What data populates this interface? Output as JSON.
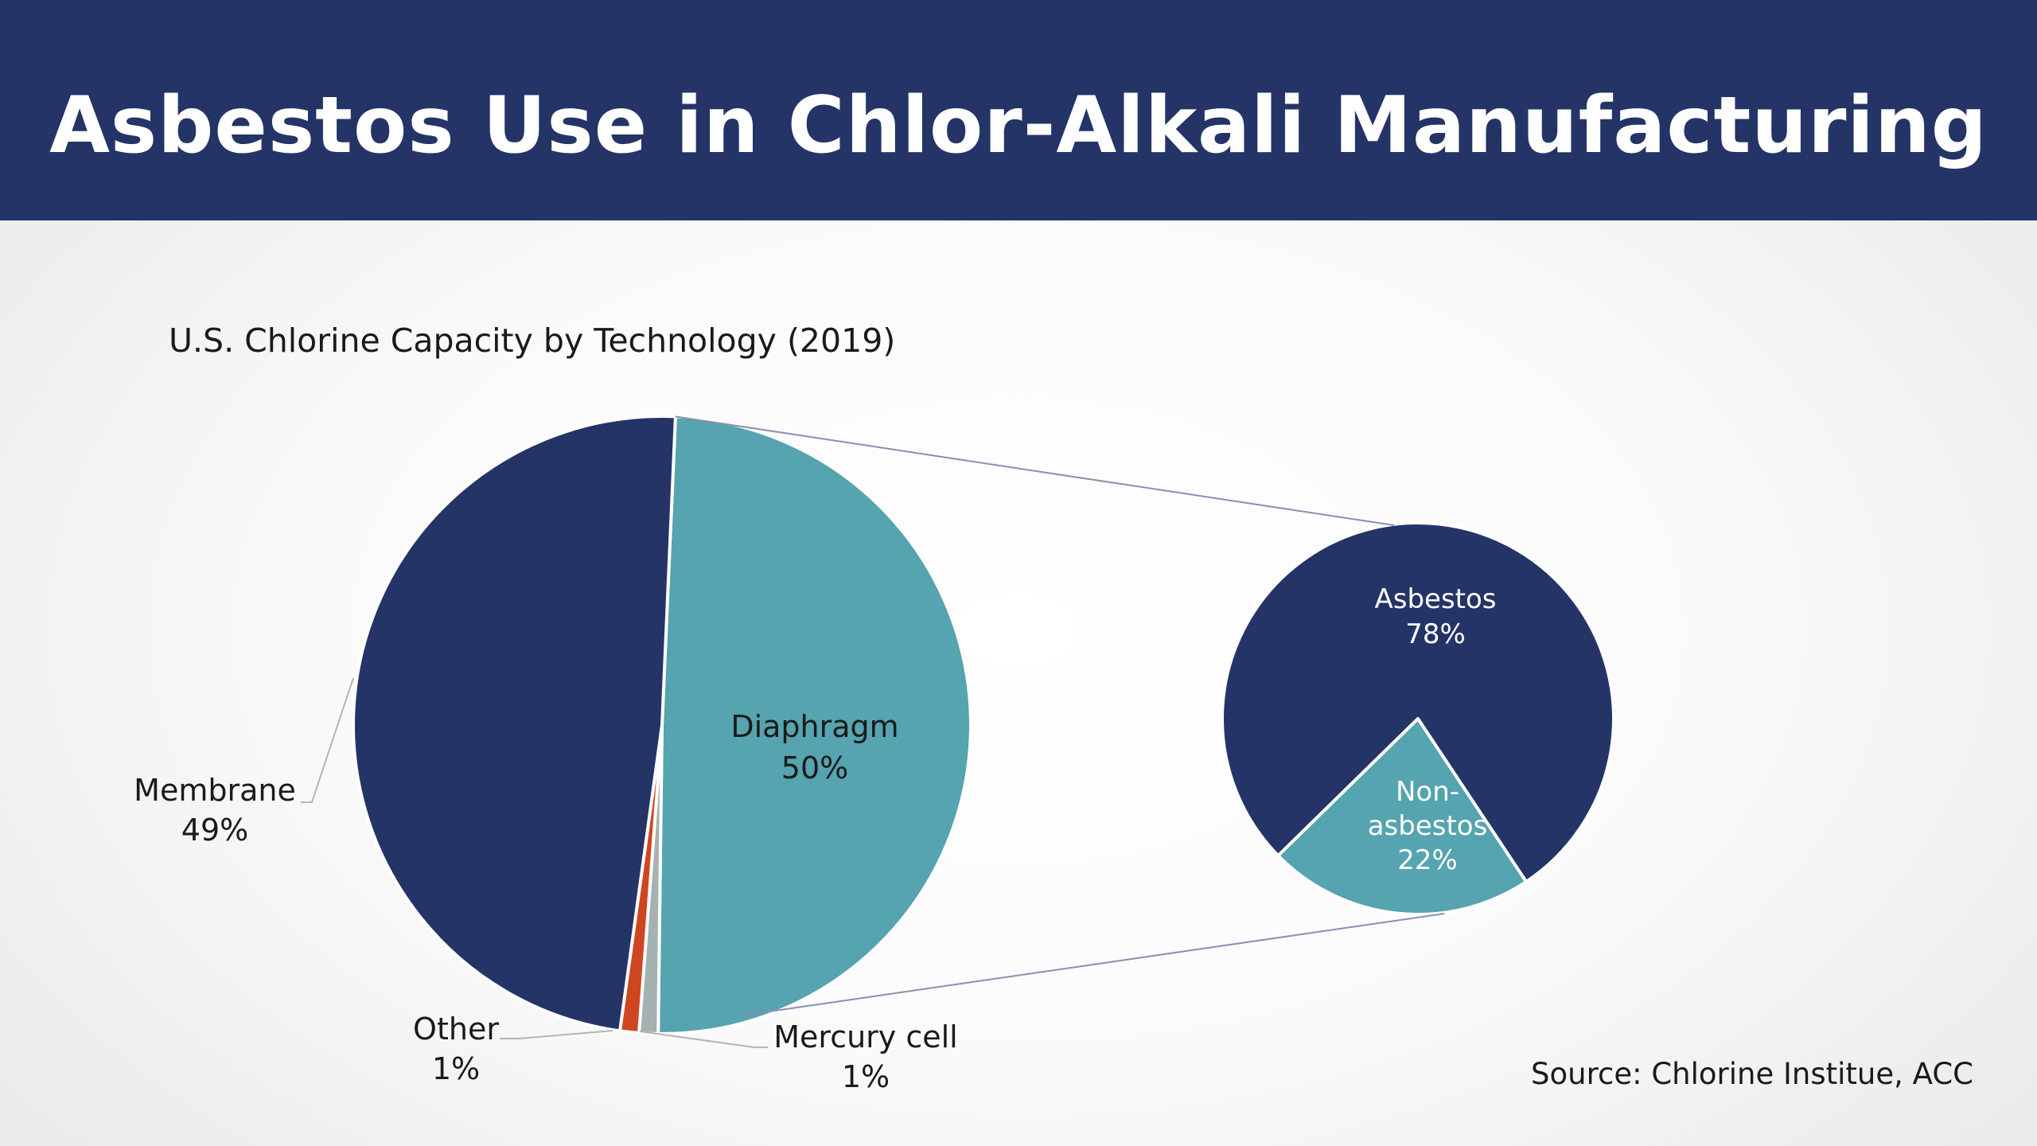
{
  "slide": {
    "title": "Asbestos Use in Chlor-Alkali Manufacturing",
    "source": "Source: Chlorine Institue, ACC"
  },
  "colors": {
    "title_bar": "#243467",
    "dark_navy": "#243467",
    "teal": "#55A4AF",
    "red": "#CF4520",
    "gray": "#A6B1B1",
    "connector": "#8A8FB0"
  },
  "chart_data": [
    {
      "type": "pie",
      "title": "U.S. Chlorine Capacity by Technology (2019)",
      "slices": [
        {
          "name": "Diaphragm",
          "label": "Diaphragm",
          "value": 50,
          "value_label": "50%",
          "color": "#55A4AF"
        },
        {
          "name": "Mercury cell",
          "label": "Mercury cell",
          "value": 1,
          "value_label": "1%",
          "color": "#A6B1B1"
        },
        {
          "name": "Other",
          "label": "Other",
          "value": 1,
          "value_label": "1%",
          "color": "#CF4520"
        },
        {
          "name": "Membrane",
          "label": "Membrane",
          "value": 49,
          "value_label": "49%",
          "color": "#243467"
        }
      ]
    },
    {
      "type": "pie",
      "title": "",
      "breakdown_of": "Diaphragm",
      "slices": [
        {
          "name": "Non-asbestos",
          "label_lines": [
            "Non-",
            "asbestos"
          ],
          "value": 22,
          "value_label": "22%",
          "color": "#55A4AF"
        },
        {
          "name": "Asbestos",
          "label_lines": [
            "Asbestos"
          ],
          "value": 78,
          "value_label": "78%",
          "color": "#243467"
        }
      ]
    }
  ]
}
